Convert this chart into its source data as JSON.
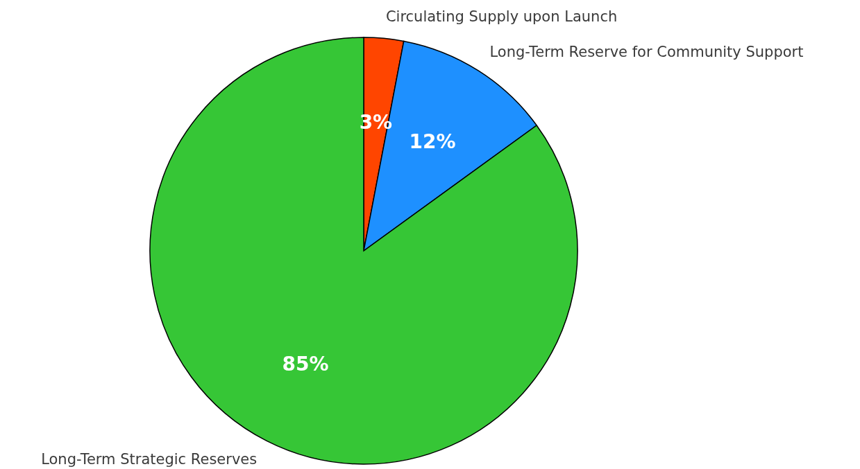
{
  "chart_data": {
    "type": "pie",
    "categories": [
      "Circulating Supply upon Launch",
      "Long-Term Reserve for Community Support",
      "Long-Term Strategic Reserves"
    ],
    "values": [
      3,
      12,
      85
    ],
    "value_labels": [
      "3%",
      "12%",
      "85%"
    ],
    "colors": [
      "#ff4500",
      "#1e90ff",
      "#36c636"
    ]
  }
}
